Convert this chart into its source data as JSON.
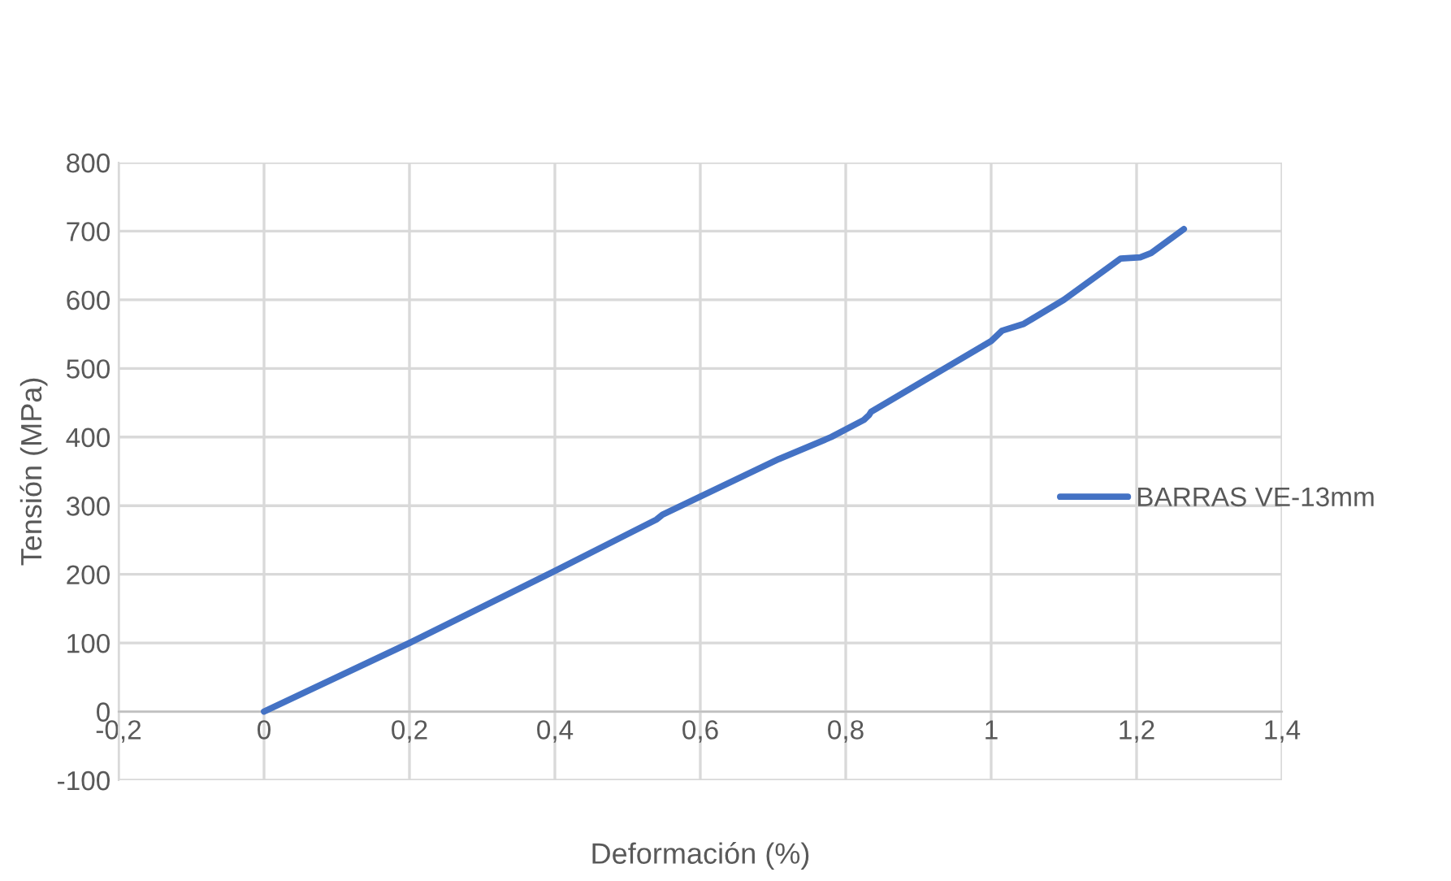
{
  "chart_data": {
    "type": "line",
    "xlabel": "Deformación (%)",
    "ylabel": "Tensión (MPa)",
    "series": [
      {
        "name": "BARRAS VE-13mm",
        "color": "#4472c4",
        "x": [
          0,
          0.2,
          0.4,
          0.54,
          0.548,
          0.708,
          0.78,
          0.825,
          0.832,
          0.835,
          1.0,
          1.008,
          1.015,
          1.045,
          1.1,
          1.165,
          1.178,
          1.205,
          1.22,
          1.265
        ],
        "values": [
          0,
          100,
          205,
          280,
          287,
          368,
          400,
          425,
          432,
          437,
          540,
          548,
          555,
          565,
          600,
          650,
          660,
          662,
          668,
          703
        ]
      }
    ],
    "xlim": [
      -0.2,
      1.4
    ],
    "ylim": [
      -100,
      800
    ],
    "xticks": [
      {
        "value": -0.2,
        "label": "-0,2"
      },
      0,
      {
        "value": 0.2,
        "label": "0,2"
      },
      {
        "value": 0.4,
        "label": "0,4"
      },
      {
        "value": 0.6,
        "label": "0,6"
      },
      {
        "value": 0.8,
        "label": "0,8"
      },
      1,
      {
        "value": 1.2,
        "label": "1,2"
      },
      {
        "value": 1.4,
        "label": "1,4"
      }
    ],
    "yticks": [
      {
        "value": -100,
        "label": "-100"
      },
      0,
      100,
      200,
      300,
      400,
      500,
      600,
      700,
      800
    ],
    "grid": true,
    "legend": "right",
    "marker": "none",
    "line_style": "solid"
  }
}
